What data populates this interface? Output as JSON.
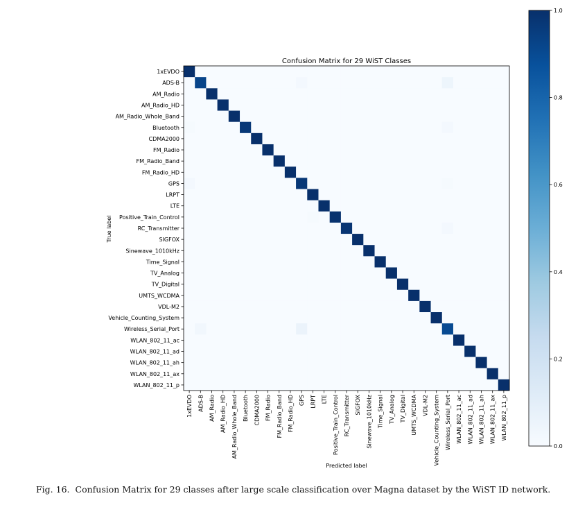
{
  "chart_data": {
    "type": "heatmap",
    "title": "Confusion Matrix for 29 WiST Classes",
    "xlabel": "Predicted label",
    "ylabel": "True label",
    "classes": [
      "1xEVDO",
      "ADS-B",
      "AM_Radio",
      "AM_Radio_HD",
      "AM_Radio_Whole_Band",
      "Bluetooth",
      "CDMA2000",
      "FM_Radio",
      "FM_Radio_Band",
      "FM_Radio_HD",
      "GPS",
      "LRPT",
      "LTE",
      "Positive_Train_Control",
      "RC_Transmitter",
      "SIGFOX",
      "Sinewave_1010kHz",
      "Time_Signal",
      "TV_Analog",
      "TV_Digital",
      "UMTS_WCDMA",
      "VDL-M2",
      "Vehicle_Counting_System",
      "Wireless_Serial_Port",
      "WLAN_802_11_ac",
      "WLAN_802_11_ad",
      "WLAN_802_11_ah",
      "WLAN_802_11_ax",
      "WLAN_802_11_p"
    ],
    "diagonal": [
      1.0,
      0.92,
      1.0,
      1.0,
      1.0,
      0.97,
      1.0,
      1.0,
      1.0,
      1.0,
      0.97,
      1.0,
      1.0,
      0.99,
      0.98,
      1.0,
      1.0,
      1.0,
      1.0,
      1.0,
      1.0,
      1.0,
      1.0,
      0.9,
      1.0,
      1.0,
      1.0,
      1.0,
      1.0
    ],
    "off_diagonal": [
      {
        "true": 1,
        "pred": 10,
        "value": 0.02
      },
      {
        "true": 1,
        "pred": 23,
        "value": 0.05
      },
      {
        "true": 5,
        "pred": 0,
        "value": 0.01
      },
      {
        "true": 5,
        "pred": 23,
        "value": 0.02
      },
      {
        "true": 10,
        "pred": 0,
        "value": 0.02
      },
      {
        "true": 10,
        "pred": 23,
        "value": 0.01
      },
      {
        "true": 13,
        "pred": 11,
        "value": 0.01
      },
      {
        "true": 14,
        "pred": 23,
        "value": 0.02
      },
      {
        "true": 23,
        "pred": 1,
        "value": 0.03
      },
      {
        "true": 23,
        "pred": 10,
        "value": 0.06
      }
    ],
    "colorbar": {
      "range": [
        0.0,
        1.0
      ],
      "ticks": [
        0.0,
        0.2,
        0.4,
        0.6,
        0.8,
        1.0
      ],
      "tick_labels": [
        "0.0",
        "0.2",
        "0.4",
        "0.6",
        "0.8",
        "1.0"
      ],
      "colormap": "Blues"
    }
  },
  "caption": {
    "figure_label": "Fig. 16.",
    "text": "Confusion Matrix for 29 classes after large scale classification over Magna dataset by the WiST ID network."
  }
}
